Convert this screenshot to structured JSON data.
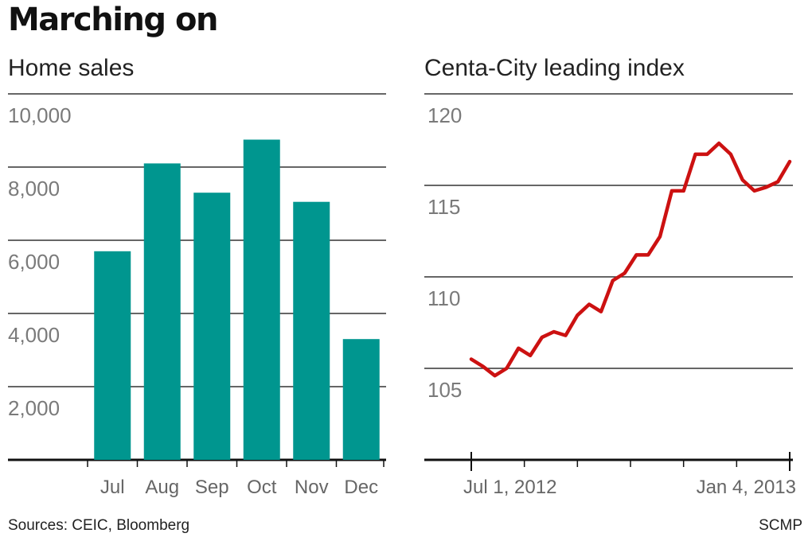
{
  "headline": "Marching on",
  "footer": {
    "sources": "Sources: CEIC, Bloomberg",
    "credit": "SCMP"
  },
  "colors": {
    "bar": "#00968F",
    "line": "#CC1111",
    "grid": "#333333",
    "axis": "#111111"
  },
  "chart_data": [
    {
      "type": "bar",
      "title": "Home sales",
      "categories": [
        "Jul",
        "Aug",
        "Sep",
        "Oct",
        "Nov",
        "Dec"
      ],
      "values": [
        5700,
        8100,
        7300,
        8750,
        7050,
        3300
      ],
      "ylim": [
        0,
        10000
      ],
      "yticks": [
        2000,
        4000,
        6000,
        8000,
        10000
      ],
      "ytick_labels": [
        "2,000",
        "4,000",
        "6,000",
        "8,000",
        "10,000"
      ],
      "grid": true
    },
    {
      "type": "line",
      "title": "Centa-City leading index",
      "ylim": [
        100,
        120
      ],
      "yticks": [
        105,
        110,
        115,
        120
      ],
      "ytick_labels": [
        "105",
        "110",
        "115",
        "120"
      ],
      "xlim": [
        0,
        27
      ],
      "xtick_labels": [
        {
          "x": 0,
          "label": "Jul 1, 2012"
        },
        {
          "x": 27,
          "label": "Jan 4, 2013"
        }
      ],
      "minor_ticks": [
        0,
        4.5,
        9,
        13.5,
        18,
        22.5,
        27
      ],
      "grid": true,
      "series": [
        {
          "name": "Centa-City leading index",
          "x": [
            0,
            1,
            2,
            3,
            4,
            5,
            6,
            7,
            8,
            9,
            10,
            11,
            12,
            13,
            14,
            15,
            16,
            17,
            18,
            19,
            20,
            21,
            22,
            23,
            24,
            25,
            26,
            27
          ],
          "values": [
            105.5,
            105.1,
            104.6,
            105.0,
            106.1,
            105.7,
            106.7,
            107.0,
            106.8,
            107.9,
            108.5,
            108.1,
            109.8,
            110.2,
            111.2,
            111.2,
            112.2,
            114.7,
            114.7,
            116.7,
            116.7,
            117.3,
            116.7,
            115.3,
            114.7,
            114.9,
            115.2,
            116.3
          ]
        }
      ]
    }
  ]
}
